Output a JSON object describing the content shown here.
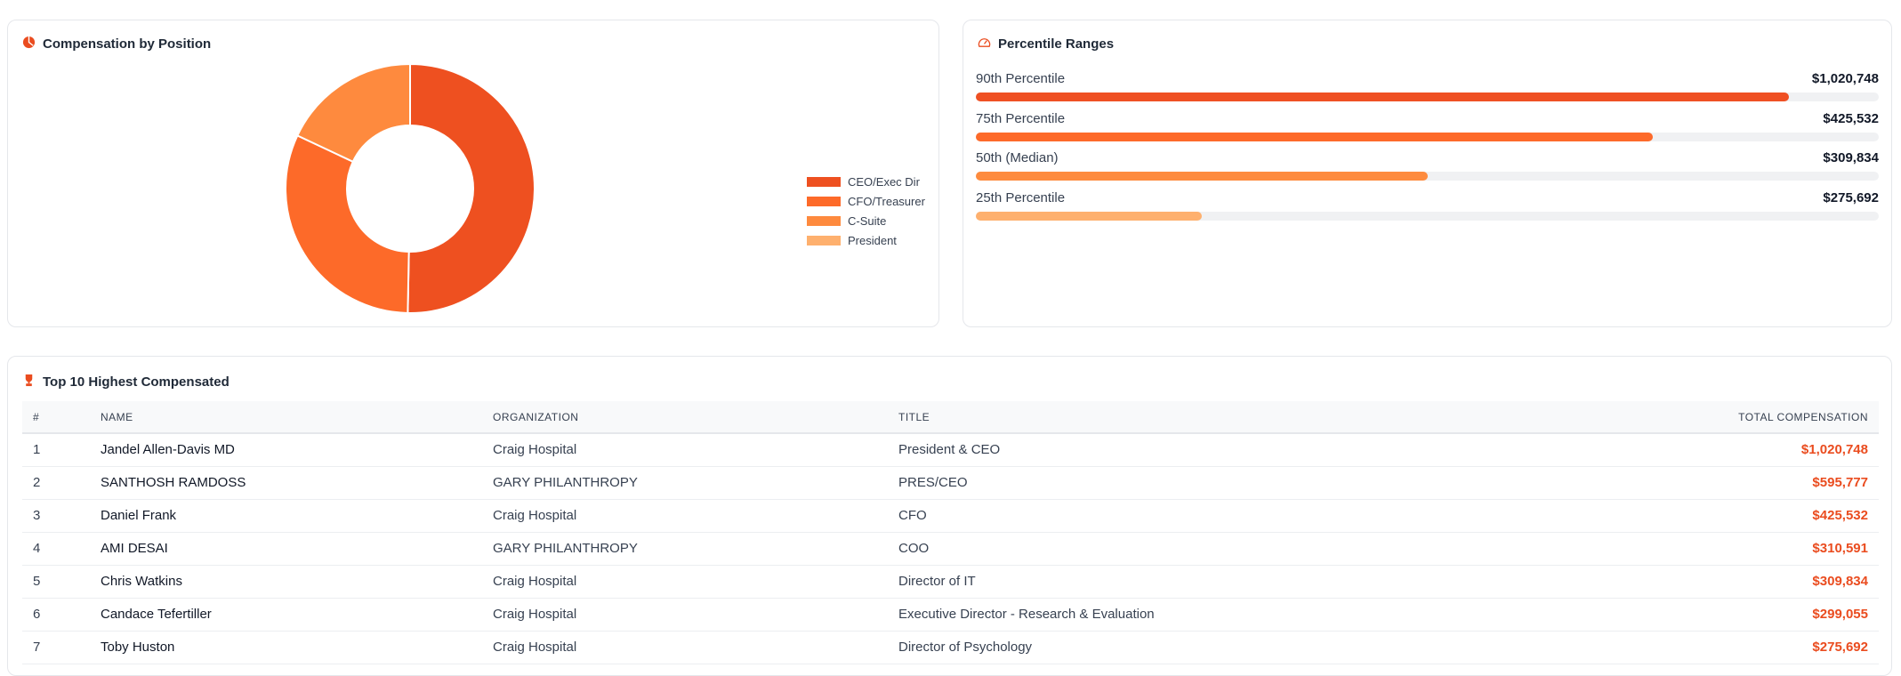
{
  "position_card": {
    "title": "Compensation by Position",
    "icon": "pie-chart-icon"
  },
  "percentile_card": {
    "title": "Percentile Ranges",
    "icon": "gauge-icon",
    "rows": [
      {
        "label": "90th Percentile",
        "value": "$1,020,748",
        "fill_percent": 90,
        "color": "#ef5023"
      },
      {
        "label": "75th Percentile",
        "value": "$425,532",
        "fill_percent": 75,
        "color": "#fd6a2a"
      },
      {
        "label": "50th (Median)",
        "value": "$309,834",
        "fill_percent": 50,
        "color": "#fe8b3e"
      },
      {
        "label": "25th Percentile",
        "value": "$275,692",
        "fill_percent": 25,
        "color": "#feb06e"
      }
    ]
  },
  "chart_data": {
    "type": "pie",
    "donut": true,
    "title": "Compensation by Position",
    "legend_position": "right",
    "categories": [
      "CEO/Exec Dir",
      "CFO/Treasurer",
      "C-Suite",
      "President"
    ],
    "values": [
      50.3,
      31.7,
      18.0,
      0
    ],
    "colors": [
      "#ee5020",
      "#fd6a29",
      "#fe8a3e",
      "#feb06e"
    ]
  },
  "table_card": {
    "title": "Top 10 Highest Compensated",
    "icon": "trophy-icon",
    "columns": [
      "#",
      "NAME",
      "ORGANIZATION",
      "TITLE",
      "TOTAL COMPENSATION"
    ],
    "rows": [
      [
        "1",
        "Jandel Allen-Davis MD",
        "Craig Hospital",
        "President & CEO",
        "$1,020,748"
      ],
      [
        "2",
        "SANTHOSH RAMDOSS",
        "GARY PHILANTHROPY",
        "PRES/CEO",
        "$595,777"
      ],
      [
        "3",
        "Daniel Frank",
        "Craig Hospital",
        "CFO",
        "$425,532"
      ],
      [
        "4",
        "AMI DESAI",
        "GARY PHILANTHROPY",
        "COO",
        "$310,591"
      ],
      [
        "5",
        "Chris Watkins",
        "Craig Hospital",
        "Director of IT",
        "$309,834"
      ],
      [
        "6",
        "Candace Tefertiller",
        "Craig Hospital",
        "Executive Director - Research & Evaluation",
        "$299,055"
      ],
      [
        "7",
        "Toby Huston",
        "Craig Hospital",
        "Director of Psychology",
        "$275,692"
      ]
    ]
  }
}
